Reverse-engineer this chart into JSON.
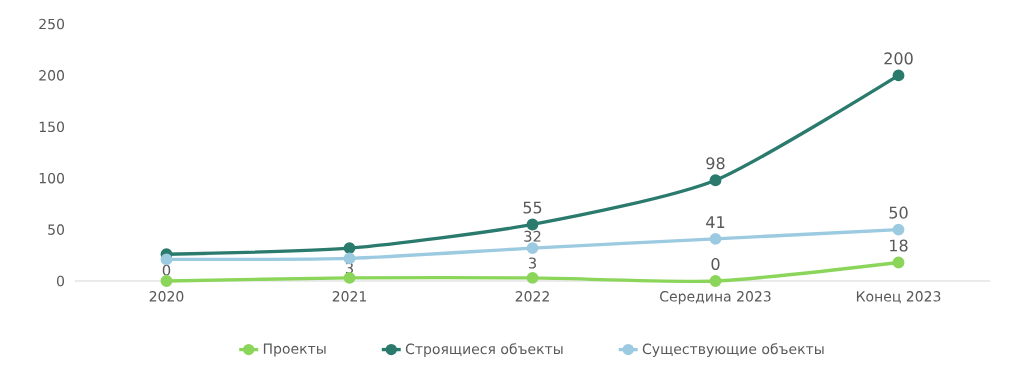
{
  "chart_data": {
    "type": "line",
    "categories": [
      "2020",
      "2021",
      "2022",
      "Середина 2023",
      "Конец 2023"
    ],
    "ylim": [
      0,
      250
    ],
    "yticks": [
      0,
      50,
      100,
      150,
      200,
      250
    ],
    "grid": false,
    "legend": "bottom",
    "marker": "circle",
    "line_style": "solid",
    "series": [
      {
        "name": "Проекты",
        "color": "#8bd65a",
        "values": [
          0,
          3,
          3,
          0,
          18
        ],
        "value_labels": [
          "0",
          "3",
          "3",
          "0",
          "18"
        ]
      },
      {
        "name": "Строящиеся объекты",
        "color": "#2a7b6d",
        "values": [
          26,
          32,
          55,
          98,
          200
        ],
        "value_labels": [
          null,
          null,
          "55",
          "98",
          "200"
        ]
      },
      {
        "name": "Существующие объекты",
        "color": "#9ccae0",
        "values": [
          21,
          22,
          32,
          41,
          50
        ],
        "value_labels": [
          null,
          null,
          "32",
          "41",
          "50"
        ]
      }
    ]
  }
}
